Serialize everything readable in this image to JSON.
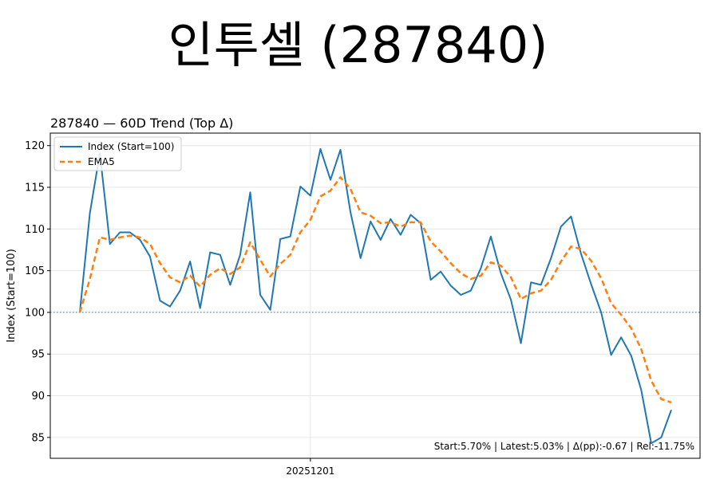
{
  "page_title": "인투셀 (287840)",
  "chart_data": {
    "type": "line",
    "title": "287840 — 60D Trend (Top Δ)",
    "xlabel": "",
    "ylabel": "Index (Start=100)",
    "ylim": [
      82.5,
      121.5
    ],
    "yticks": [
      85,
      90,
      95,
      100,
      105,
      110,
      115,
      120
    ],
    "xtick_labels": [
      {
        "index": 23,
        "label": "20251201"
      }
    ],
    "baseline": 100,
    "grid": true,
    "legend_position": "top-left",
    "annotation": "Start:5.70% | Latest:5.03% | Δ(pp):-0.67 | Rel:-11.75%",
    "x": [
      0,
      1,
      2,
      3,
      4,
      5,
      6,
      7,
      8,
      9,
      10,
      11,
      12,
      13,
      14,
      15,
      16,
      17,
      18,
      19,
      20,
      21,
      22,
      23,
      24,
      25,
      26,
      27,
      28,
      29,
      30,
      31,
      32,
      33,
      34,
      35,
      36,
      37,
      38,
      39,
      40,
      41,
      42,
      43,
      44,
      45,
      46,
      47,
      48,
      49,
      50,
      51,
      52,
      53,
      54,
      55,
      56,
      57,
      58,
      59
    ],
    "series": [
      {
        "name": "Index (Start=100)",
        "color": "#1f77b4",
        "style": "solid",
        "values": [
          100.0,
          111.9,
          119.1,
          108.2,
          109.6,
          109.6,
          108.7,
          106.7,
          101.4,
          100.7,
          102.6,
          106.1,
          100.5,
          107.2,
          106.9,
          103.3,
          106.9,
          114.4,
          102.1,
          100.3,
          108.8,
          109.1,
          115.1,
          114.0,
          119.6,
          115.9,
          119.5,
          112.0,
          106.5,
          110.9,
          108.7,
          111.2,
          109.3,
          111.7,
          110.7,
          103.9,
          104.9,
          103.2,
          102.1,
          102.6,
          105.3,
          109.1,
          104.7,
          101.5,
          96.3,
          103.6,
          103.3,
          106.5,
          110.3,
          111.5,
          107.0,
          103.4,
          100.0,
          94.9,
          97.0,
          94.8,
          90.7,
          84.3,
          85.0,
          88.3
        ]
      },
      {
        "name": "EMA5",
        "color": "#ff7f0e",
        "style": "dashed",
        "values": [
          100.0,
          104.0,
          109.0,
          108.7,
          109.0,
          109.2,
          109.0,
          108.2,
          105.9,
          104.2,
          103.6,
          104.4,
          103.1,
          104.5,
          105.3,
          104.6,
          105.4,
          108.4,
          106.3,
          104.3,
          105.8,
          106.9,
          109.6,
          111.1,
          113.9,
          114.6,
          116.2,
          114.8,
          112.0,
          111.6,
          110.7,
          110.8,
          110.3,
          110.8,
          110.8,
          108.5,
          107.3,
          105.9,
          104.7,
          104.0,
          104.4,
          106.0,
          105.6,
          104.2,
          101.6,
          102.3,
          102.6,
          103.9,
          106.1,
          107.9,
          107.6,
          106.2,
          104.1,
          101.1,
          99.7,
          98.1,
          95.6,
          91.8,
          89.6,
          89.2
        ]
      }
    ]
  }
}
